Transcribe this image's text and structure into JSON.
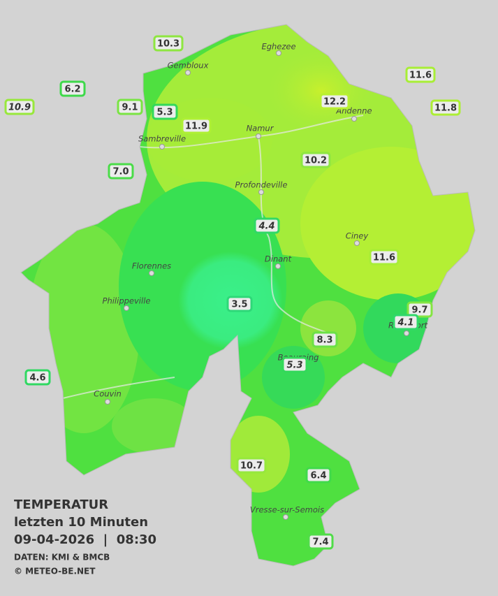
{
  "header": {
    "title": "TEMPERATUR",
    "period": "letzten 10 Minuten",
    "datetime": "09-04-2026  |  08:30",
    "source": "DATEN: KMI & BMCB",
    "copyright": "© METEO-BE.NET"
  },
  "cities": [
    "Eghezee",
    "Gembloux",
    "Andenne",
    "Namur",
    "Sambreville",
    "Profondeville",
    "Ciney",
    "Dinant",
    "Florennes",
    "Philippeville",
    "Rochefort",
    "Beauraing",
    "Couvin",
    "Vresse-sur-Semois"
  ],
  "stations": [
    {
      "label": "10.3",
      "italic": false,
      "color": "#8ee640"
    },
    {
      "label": "6.2",
      "italic": false,
      "color": "#3ed94a"
    },
    {
      "label": "10.9",
      "italic": true,
      "color": "#98e83c"
    },
    {
      "label": "9.1",
      "italic": false,
      "color": "#7ae444"
    },
    {
      "label": "5.3",
      "italic": false,
      "color": "#33d85a"
    },
    {
      "label": "11.9",
      "italic": false,
      "color": "#aef034"
    },
    {
      "label": "7.0",
      "italic": false,
      "color": "#4adc48"
    },
    {
      "label": "12.2",
      "italic": false,
      "color": "#b8f030"
    },
    {
      "label": "11.6",
      "italic": false,
      "color": "#a8ee36"
    },
    {
      "label": "11.8",
      "italic": false,
      "color": "#acee34"
    },
    {
      "label": "10.2",
      "italic": false,
      "color": "#8ee640"
    },
    {
      "label": "4.4",
      "italic": true,
      "color": "#30d866"
    },
    {
      "label": "11.6",
      "italic": false,
      "color": "#a8ee36"
    },
    {
      "label": "3.5",
      "italic": false,
      "color": "#2ed878"
    },
    {
      "label": "9.7",
      "italic": false,
      "color": "#84e542"
    },
    {
      "label": "4.1",
      "italic": true,
      "color": "#30d86a"
    },
    {
      "label": "8.3",
      "italic": false,
      "color": "#6ce046"
    },
    {
      "label": "5.3",
      "italic": true,
      "color": "#33d85a"
    },
    {
      "label": "4.6",
      "italic": false,
      "color": "#30d862"
    },
    {
      "label": "10.7",
      "italic": false,
      "color": "#96e83c"
    },
    {
      "label": "6.4",
      "italic": false,
      "color": "#40da4a"
    },
    {
      "label": "7.4",
      "italic": false,
      "color": "#50dc48"
    }
  ]
}
